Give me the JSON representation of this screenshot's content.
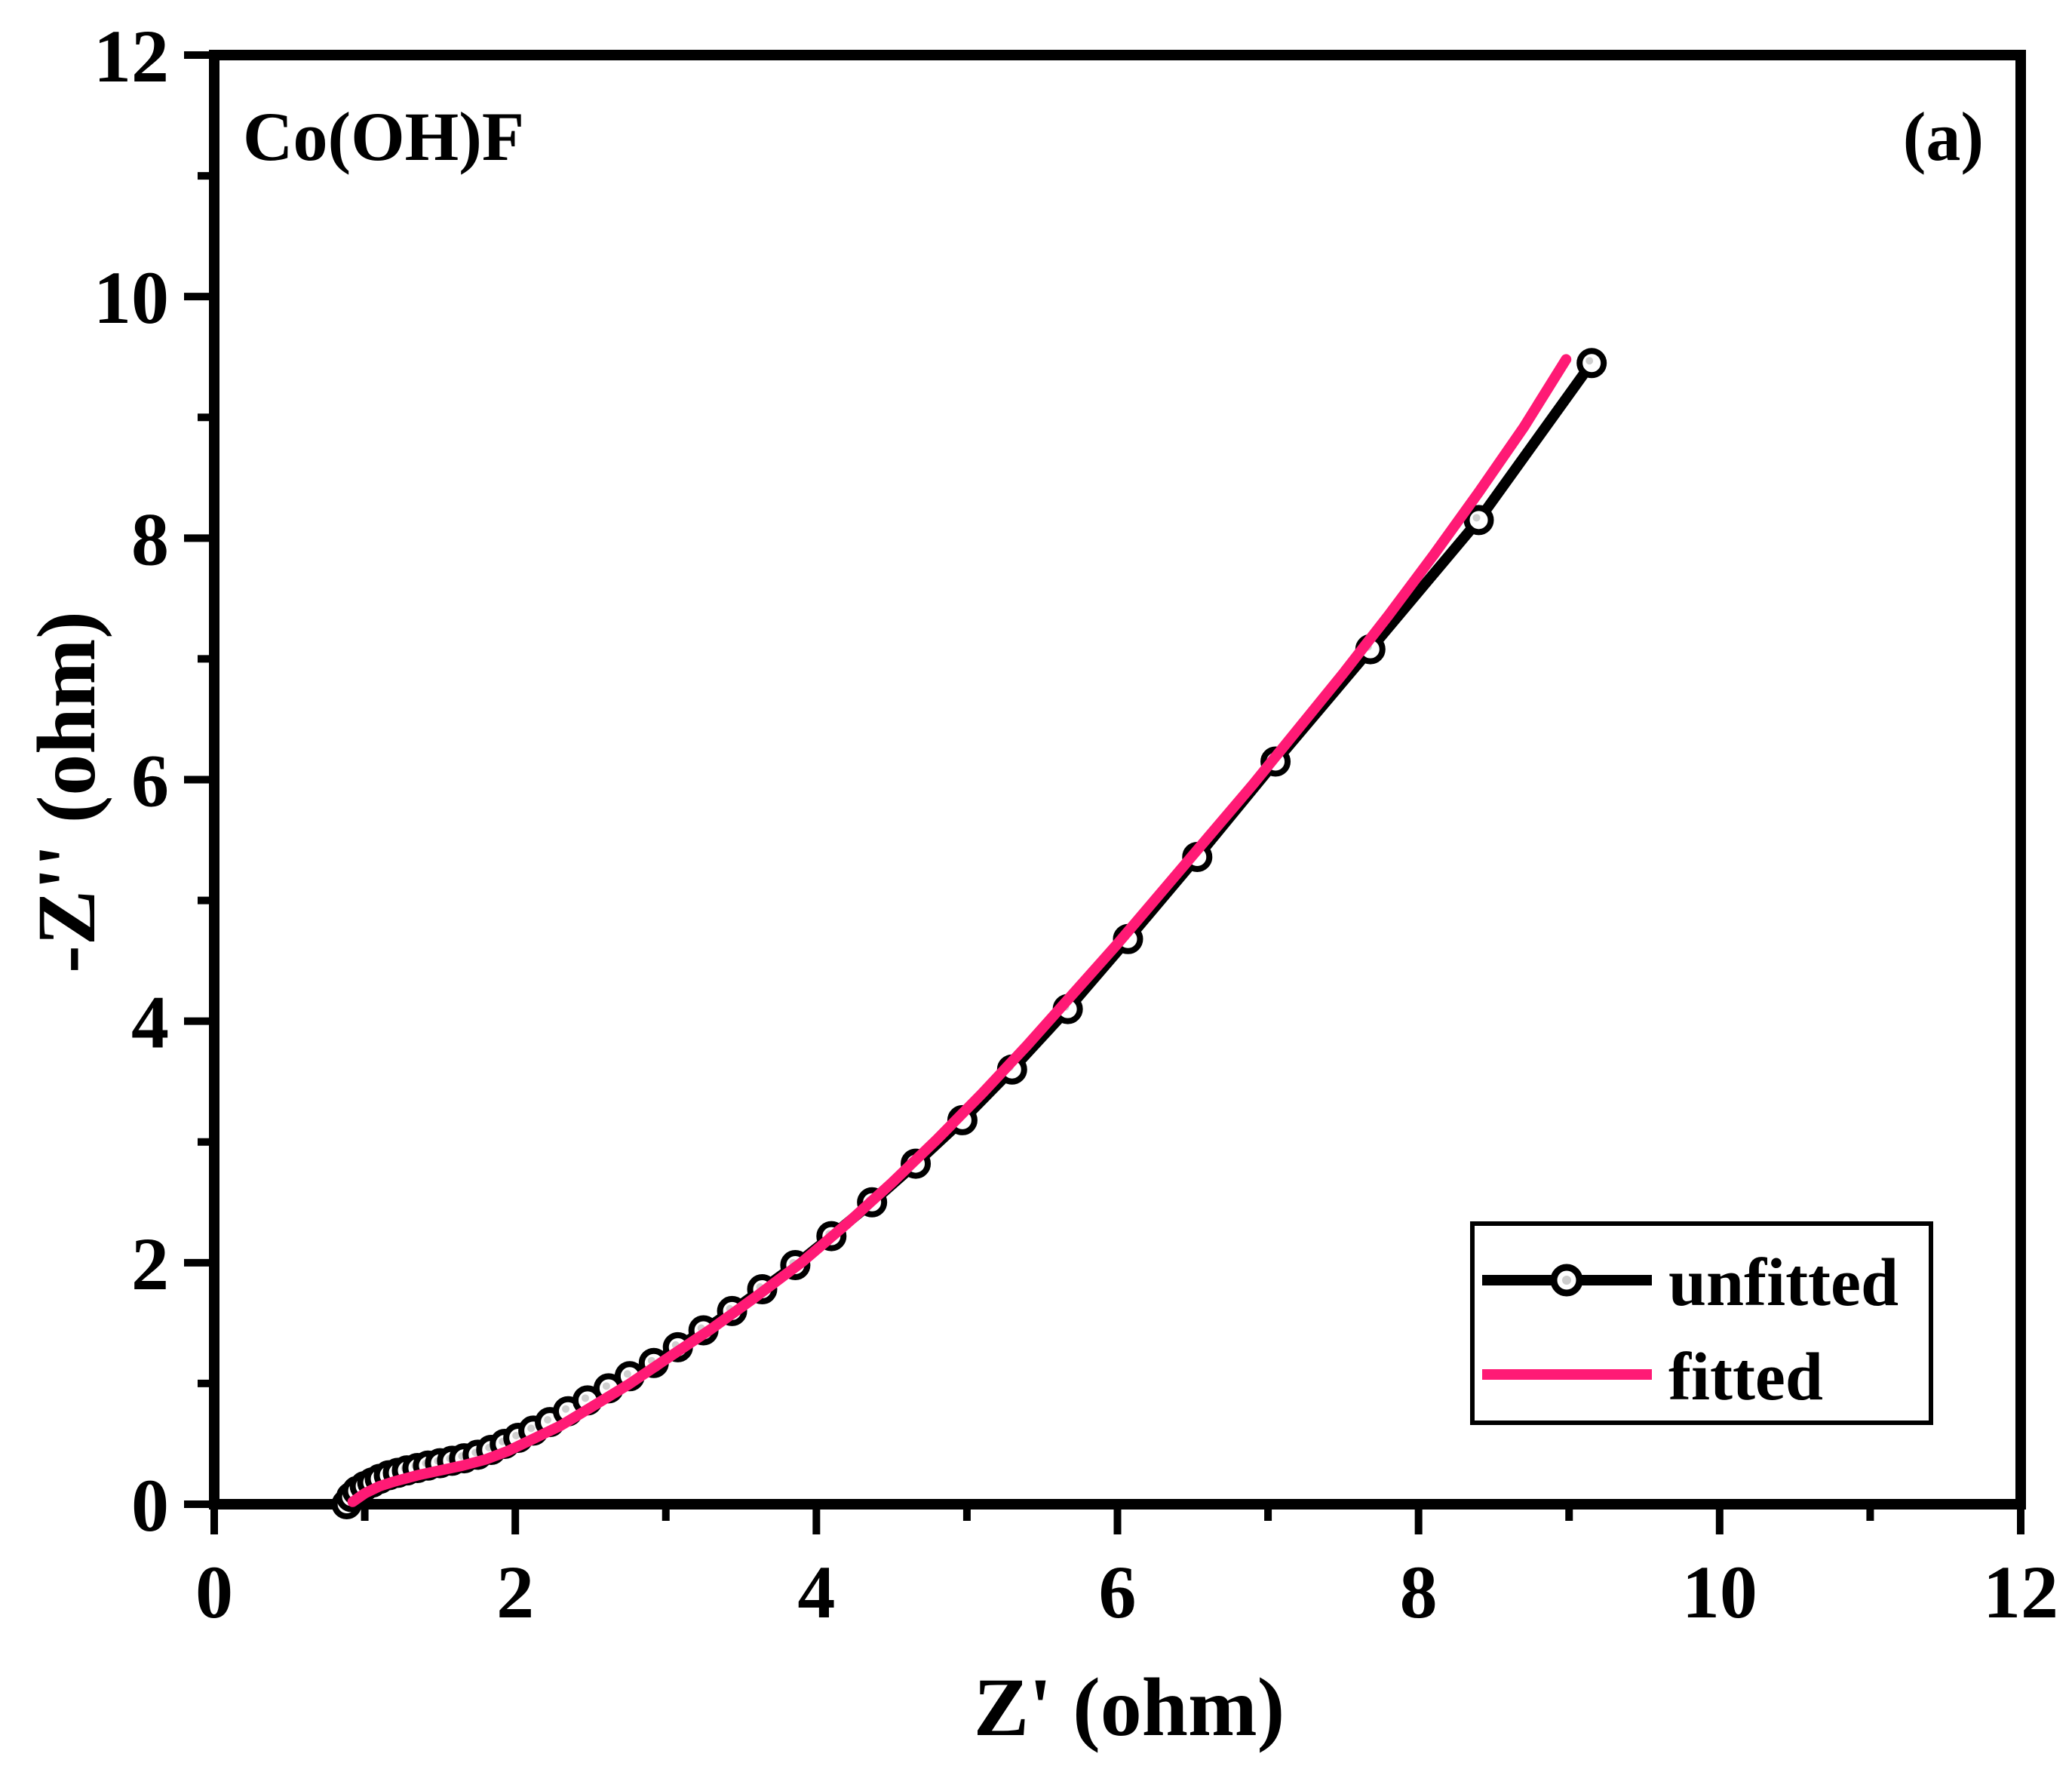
{
  "chart_data": {
    "type": "line",
    "title": "",
    "xlabel": "Z' (ohm)",
    "ylabel": "-Z'' (ohm)",
    "xlim": [
      0,
      12
    ],
    "ylim": [
      0,
      12
    ],
    "xticks": [
      "0",
      "2",
      "4",
      "6",
      "8",
      "10",
      "12"
    ],
    "yticks": [
      "0",
      "2",
      "4",
      "6",
      "8",
      "10",
      "12"
    ],
    "grid": false,
    "legend_position": "bottom-right",
    "annotations": {
      "sample": "Co(OH)F",
      "panel": "(a)"
    },
    "colors": {
      "unfitted": "#000000",
      "fitted": "#ff1a75"
    },
    "series": [
      {
        "name": "unfitted",
        "style": "line-with-markers",
        "points": [
          [
            0.88,
            0.0
          ],
          [
            0.91,
            0.06
          ],
          [
            0.95,
            0.11
          ],
          [
            1.0,
            0.15
          ],
          [
            1.05,
            0.18
          ],
          [
            1.1,
            0.21
          ],
          [
            1.16,
            0.24
          ],
          [
            1.22,
            0.26
          ],
          [
            1.28,
            0.28
          ],
          [
            1.35,
            0.3
          ],
          [
            1.42,
            0.32
          ],
          [
            1.5,
            0.34
          ],
          [
            1.58,
            0.36
          ],
          [
            1.66,
            0.38
          ],
          [
            1.75,
            0.41
          ],
          [
            1.84,
            0.45
          ],
          [
            1.93,
            0.5
          ],
          [
            2.02,
            0.55
          ],
          [
            2.12,
            0.61
          ],
          [
            2.23,
            0.68
          ],
          [
            2.35,
            0.77
          ],
          [
            2.48,
            0.86
          ],
          [
            2.62,
            0.96
          ],
          [
            2.76,
            1.06
          ],
          [
            2.92,
            1.17
          ],
          [
            3.08,
            1.3
          ],
          [
            3.25,
            1.44
          ],
          [
            3.44,
            1.6
          ],
          [
            3.64,
            1.78
          ],
          [
            3.86,
            1.98
          ],
          [
            4.1,
            2.22
          ],
          [
            4.37,
            2.5
          ],
          [
            4.66,
            2.82
          ],
          [
            4.97,
            3.18
          ],
          [
            5.3,
            3.6
          ],
          [
            5.67,
            4.1
          ],
          [
            6.07,
            4.68
          ],
          [
            6.53,
            5.36
          ],
          [
            7.05,
            6.15
          ],
          [
            7.68,
            7.08
          ],
          [
            8.4,
            8.15
          ],
          [
            9.15,
            9.45
          ]
        ]
      },
      {
        "name": "fitted",
        "style": "line",
        "points": [
          [
            0.92,
            0.02
          ],
          [
            1.0,
            0.09
          ],
          [
            1.1,
            0.15
          ],
          [
            1.2,
            0.19
          ],
          [
            1.35,
            0.24
          ],
          [
            1.5,
            0.28
          ],
          [
            1.65,
            0.32
          ],
          [
            1.8,
            0.37
          ],
          [
            1.95,
            0.44
          ],
          [
            2.1,
            0.53
          ],
          [
            2.3,
            0.65
          ],
          [
            2.5,
            0.8
          ],
          [
            2.75,
            0.99
          ],
          [
            3.0,
            1.2
          ],
          [
            3.3,
            1.45
          ],
          [
            3.6,
            1.72
          ],
          [
            3.9,
            2.0
          ],
          [
            4.2,
            2.32
          ],
          [
            4.5,
            2.66
          ],
          [
            4.8,
            3.02
          ],
          [
            5.1,
            3.4
          ],
          [
            5.4,
            3.8
          ],
          [
            5.7,
            4.22
          ],
          [
            6.0,
            4.64
          ],
          [
            6.3,
            5.08
          ],
          [
            6.6,
            5.52
          ],
          [
            6.9,
            5.96
          ],
          [
            7.2,
            6.42
          ],
          [
            7.5,
            6.88
          ],
          [
            7.8,
            7.36
          ],
          [
            8.1,
            7.86
          ],
          [
            8.4,
            8.38
          ],
          [
            8.7,
            8.92
          ],
          [
            8.98,
            9.48
          ]
        ]
      }
    ]
  }
}
